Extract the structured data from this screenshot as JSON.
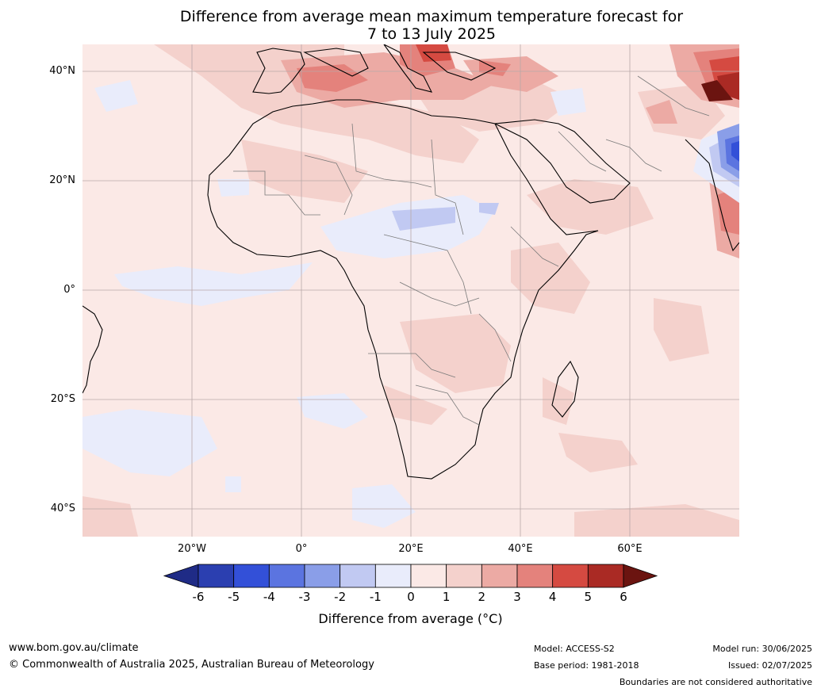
{
  "title": {
    "line1": "Difference from average mean maximum temperature forecast for",
    "line2": "7 to 13 July 2025"
  },
  "map": {
    "lat_labels": [
      "40°N",
      "20°N",
      "0°",
      "20°S",
      "40°S"
    ],
    "lon_labels": [
      "20°W",
      "0°",
      "20°E",
      "40°E",
      "60°E"
    ],
    "background_color": "#fbe9e6"
  },
  "colorbar": {
    "ticks": [
      "-6",
      "-5",
      "-4",
      "-3",
      "-2",
      "-1",
      "0",
      "1",
      "2",
      "3",
      "4",
      "5",
      "6"
    ],
    "colors": [
      "#1f2b86",
      "#2b3fb0",
      "#3350d8",
      "#5b74e0",
      "#8a9ee8",
      "#c1c9f2",
      "#e9ecfb",
      "#fbe9e6",
      "#f4d1cc",
      "#ecaaa4",
      "#e4827c",
      "#d54a41",
      "#aa2a24",
      "#6b1410"
    ],
    "label": "Difference from average (°C)"
  },
  "footer": {
    "website": "www.bom.gov.au/climate",
    "copyright": "© Commonwealth of Australia 2025, Australian Bureau of Meteorology",
    "model": "Model: ACCESS-S2",
    "base_period": "Base period: 1981-2018",
    "model_run": "Model run: 30/06/2025",
    "issued": "Issued: 02/07/2025",
    "disclaimer": "Boundaries are not considered authoritative"
  }
}
